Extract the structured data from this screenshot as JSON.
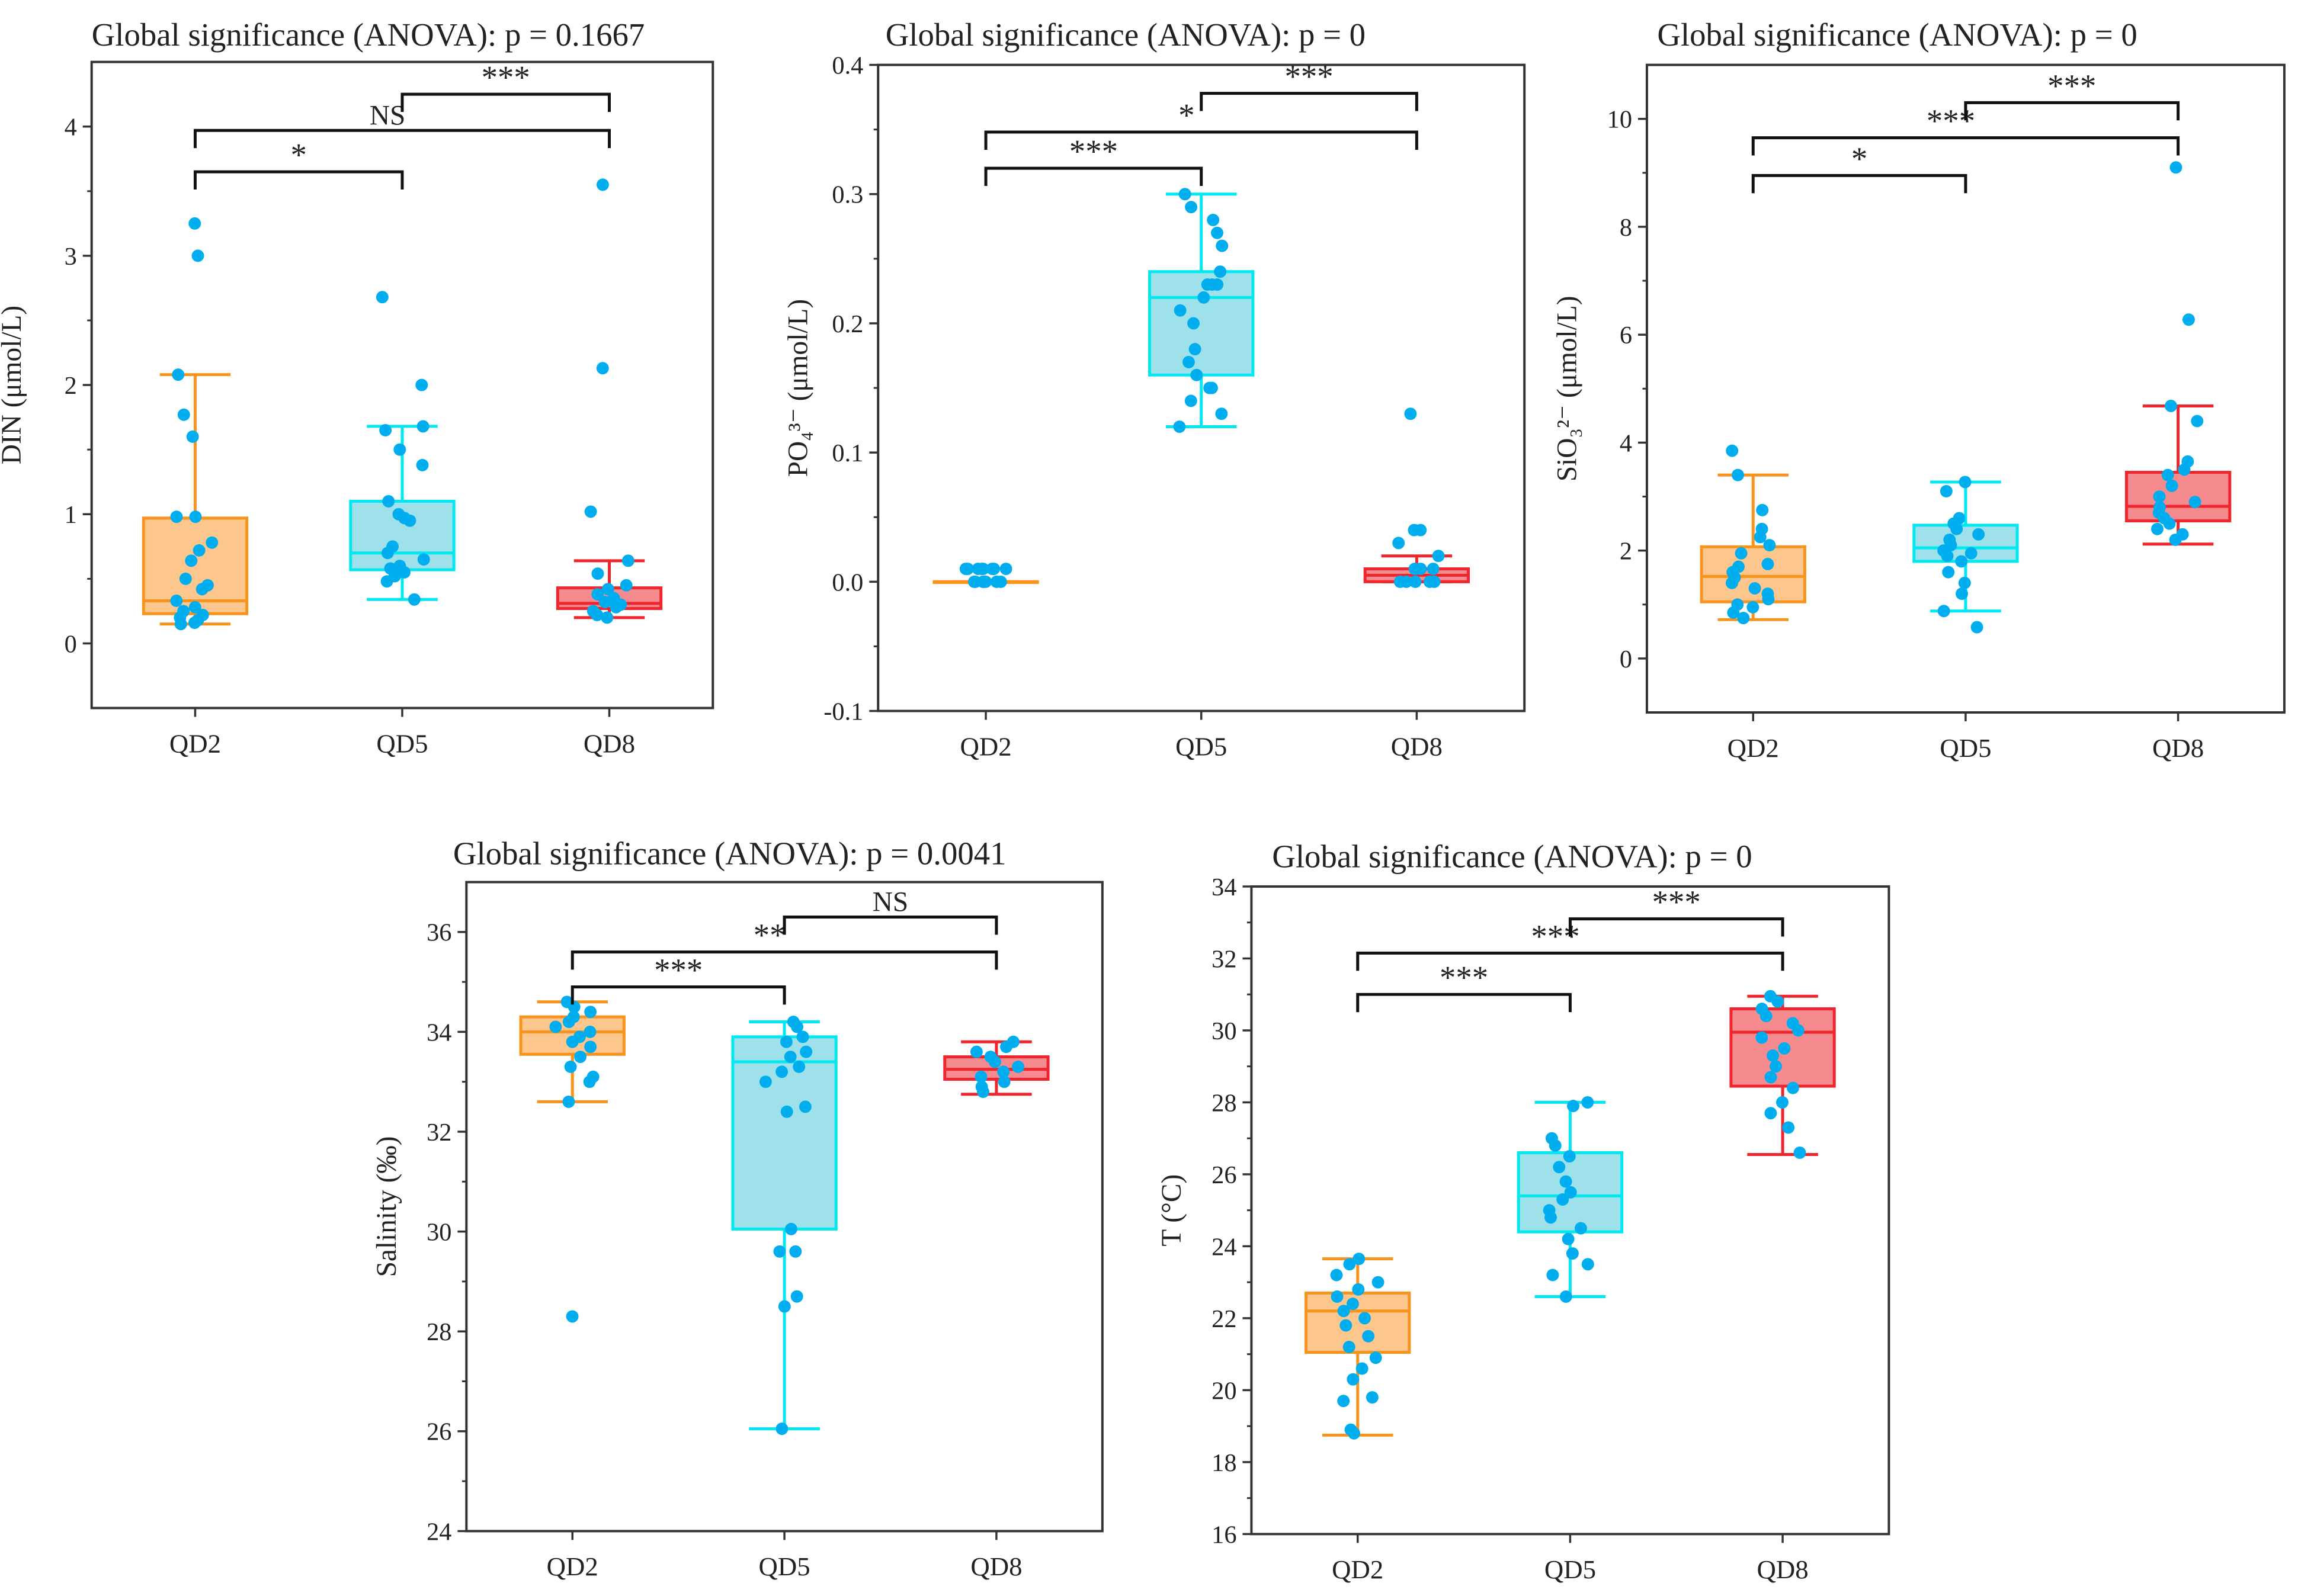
{
  "chart_data": [
    {
      "type": "box",
      "title": "Global significance (ANOVA): p = 0.1667",
      "ylabel": "DIN (μmol/L)",
      "categories": [
        "QD2",
        "QD5",
        "QD8"
      ],
      "ylim": [
        -0.5,
        4.5
      ],
      "yticks": [
        0,
        1,
        2,
        3,
        4
      ],
      "ytick_labels": [
        "0",
        "1",
        "2",
        "3",
        "4"
      ],
      "boxes": [
        {
          "q1": 0.23,
          "median": 0.33,
          "q3": 0.97,
          "whisker_low": 0.15,
          "whisker_high": 2.08,
          "points": [
            3.25,
            3.0,
            2.08,
            1.77,
            1.6,
            0.98,
            0.98,
            0.78,
            0.72,
            0.64,
            0.5,
            0.45,
            0.42,
            0.33,
            0.28,
            0.25,
            0.22,
            0.2,
            0.18,
            0.16,
            0.15
          ]
        },
        {
          "q1": 0.57,
          "median": 0.7,
          "q3": 1.1,
          "whisker_low": 0.34,
          "whisker_high": 1.68,
          "points": [
            2.68,
            2.0,
            1.68,
            1.65,
            1.5,
            1.38,
            1.1,
            1.0,
            0.97,
            0.95,
            0.75,
            0.7,
            0.65,
            0.6,
            0.58,
            0.55,
            0.52,
            0.48,
            0.34
          ]
        },
        {
          "q1": 0.27,
          "median": 0.31,
          "q3": 0.43,
          "whisker_low": 0.2,
          "whisker_high": 0.64,
          "points": [
            3.55,
            2.13,
            1.02,
            0.64,
            0.54,
            0.45,
            0.42,
            0.38,
            0.35,
            0.32,
            0.3,
            0.28,
            0.25,
            0.22,
            0.2
          ]
        }
      ],
      "brackets": [
        {
          "from": 0,
          "to": 1,
          "y": 3.65,
          "label": "*"
        },
        {
          "from": 0,
          "to": 2,
          "y": 3.97,
          "label": "NS"
        },
        {
          "from": 1,
          "to": 2,
          "y": 4.25,
          "label": "***"
        }
      ]
    },
    {
      "type": "box",
      "title": "Global significance (ANOVA): p = 0",
      "ylabel": "PO₄³⁻ (μmol/L)",
      "categories": [
        "QD2",
        "QD5",
        "QD8"
      ],
      "ylim": [
        -0.1,
        0.4
      ],
      "yticks": [
        -0.1,
        0,
        0.1,
        0.2,
        0.3,
        0.4
      ],
      "ytick_labels": [
        "-0.1",
        "0.0",
        "0.1",
        "0.2",
        "0.3",
        "0.4"
      ],
      "boxes": [
        {
          "q1": 0,
          "median": 0,
          "q3": 0,
          "whisker_low": 0,
          "whisker_high": 0,
          "points": [
            0.01,
            0.01,
            0.01,
            0.01,
            0.01,
            0.01,
            0.01,
            0.01,
            0,
            0,
            0,
            0,
            0,
            0,
            0,
            0
          ]
        },
        {
          "q1": 0.16,
          "median": 0.22,
          "q3": 0.24,
          "whisker_low": 0.12,
          "whisker_high": 0.3,
          "points": [
            0.3,
            0.29,
            0.28,
            0.27,
            0.26,
            0.24,
            0.23,
            0.23,
            0.23,
            0.22,
            0.21,
            0.2,
            0.18,
            0.17,
            0.16,
            0.15,
            0.15,
            0.14,
            0.13,
            0.12
          ]
        },
        {
          "q1": 0,
          "median": 0.005,
          "q3": 0.01,
          "whisker_low": 0,
          "whisker_high": 0.02,
          "points": [
            0.13,
            0.04,
            0.04,
            0.03,
            0.02,
            0.01,
            0.01,
            0.01,
            0,
            0,
            0,
            0,
            0
          ]
        }
      ],
      "brackets": [
        {
          "from": 0,
          "to": 1,
          "y": 0.32,
          "label": "***"
        },
        {
          "from": 0,
          "to": 2,
          "y": 0.348,
          "label": "*"
        },
        {
          "from": 1,
          "to": 2,
          "y": 0.378,
          "label": "***"
        }
      ]
    },
    {
      "type": "box",
      "title": "Global significance (ANOVA): p = 0",
      "ylabel": "SiO₃²⁻ (μmol/L)",
      "categories": [
        "QD2",
        "QD5",
        "QD8"
      ],
      "ylim": [
        -1,
        11
      ],
      "yticks": [
        0,
        2,
        4,
        6,
        8,
        10
      ],
      "ytick_labels": [
        "0",
        "2",
        "4",
        "6",
        "8",
        "10"
      ],
      "boxes": [
        {
          "q1": 1.05,
          "median": 1.52,
          "q3": 2.07,
          "whisker_low": 0.72,
          "whisker_high": 3.4,
          "points": [
            3.85,
            3.4,
            2.75,
            2.4,
            2.25,
            2.1,
            1.95,
            1.75,
            1.7,
            1.6,
            1.5,
            1.4,
            1.3,
            1.2,
            1.1,
            1.0,
            0.95,
            0.85,
            0.75
          ]
        },
        {
          "q1": 1.8,
          "median": 2.05,
          "q3": 2.47,
          "whisker_low": 0.88,
          "whisker_high": 3.27,
          "points": [
            3.27,
            3.1,
            2.6,
            2.5,
            2.4,
            2.3,
            2.2,
            2.1,
            2.0,
            1.95,
            1.9,
            1.8,
            1.6,
            1.4,
            1.2,
            0.88,
            0.58
          ]
        },
        {
          "q1": 2.55,
          "median": 2.82,
          "q3": 3.45,
          "whisker_low": 2.12,
          "whisker_high": 4.68,
          "points": [
            9.1,
            6.28,
            4.68,
            4.4,
            3.65,
            3.5,
            3.4,
            3.2,
            3.0,
            2.9,
            2.8,
            2.7,
            2.6,
            2.5,
            2.4,
            2.3,
            2.2
          ]
        }
      ],
      "brackets": [
        {
          "from": 0,
          "to": 1,
          "y": 8.95,
          "label": "*"
        },
        {
          "from": 0,
          "to": 2,
          "y": 9.65,
          "label": "***"
        },
        {
          "from": 1,
          "to": 2,
          "y": 10.3,
          "label": "***"
        }
      ]
    },
    {
      "type": "box",
      "title": "Global significance (ANOVA): p = 0.0041",
      "ylabel": "Salinity (‰)",
      "categories": [
        "QD2",
        "QD5",
        "QD8"
      ],
      "ylim": [
        24,
        37
      ],
      "yticks": [
        24,
        26,
        28,
        30,
        32,
        34,
        36
      ],
      "ytick_labels": [
        "24",
        "26",
        "28",
        "30",
        "32",
        "34",
        "36"
      ],
      "boxes": [
        {
          "q1": 33.55,
          "median": 34.0,
          "q3": 34.3,
          "whisker_low": 32.6,
          "whisker_high": 34.6,
          "points": [
            34.6,
            34.5,
            34.4,
            34.3,
            34.2,
            34.1,
            34.0,
            33.9,
            33.8,
            33.7,
            33.5,
            33.3,
            33.1,
            33.0,
            32.6,
            28.3
          ]
        },
        {
          "q1": 30.05,
          "median": 33.4,
          "q3": 33.9,
          "whisker_low": 26.05,
          "whisker_high": 34.2,
          "points": [
            34.2,
            34.1,
            33.9,
            33.8,
            33.6,
            33.5,
            33.3,
            33.2,
            33.0,
            32.5,
            32.4,
            30.05,
            29.6,
            29.6,
            28.7,
            28.5,
            26.05
          ]
        },
        {
          "q1": 33.05,
          "median": 33.25,
          "q3": 33.5,
          "whisker_low": 32.75,
          "whisker_high": 33.8,
          "points": [
            33.8,
            33.7,
            33.6,
            33.5,
            33.4,
            33.3,
            33.2,
            33.1,
            33.0,
            32.9,
            32.8
          ]
        }
      ],
      "brackets": [
        {
          "from": 0,
          "to": 1,
          "y": 34.9,
          "label": "***"
        },
        {
          "from": 0,
          "to": 2,
          "y": 35.6,
          "label": "**"
        },
        {
          "from": 1,
          "to": 2,
          "y": 36.3,
          "label": "NS"
        }
      ]
    },
    {
      "type": "box",
      "title": "Global significance (ANOVA): p = 0",
      "ylabel": "T (°C)",
      "categories": [
        "QD2",
        "QD5",
        "QD8"
      ],
      "ylim": [
        16,
        34
      ],
      "yticks": [
        16,
        18,
        20,
        22,
        24,
        26,
        28,
        30,
        32,
        34
      ],
      "ytick_labels": [
        "16",
        "18",
        "20",
        "22",
        "24",
        "26",
        "28",
        "30",
        "32",
        "34"
      ],
      "boxes": [
        {
          "q1": 21.05,
          "median": 22.2,
          "q3": 22.7,
          "whisker_low": 18.75,
          "whisker_high": 23.65,
          "points": [
            23.65,
            23.5,
            23.2,
            23.0,
            22.8,
            22.6,
            22.4,
            22.2,
            22.0,
            21.8,
            21.5,
            21.2,
            20.9,
            20.6,
            20.3,
            19.8,
            19.7,
            18.9,
            18.8
          ]
        },
        {
          "q1": 24.4,
          "median": 25.4,
          "q3": 26.6,
          "whisker_low": 22.6,
          "whisker_high": 28.0,
          "points": [
            28.0,
            27.9,
            27.0,
            26.8,
            26.5,
            26.2,
            25.8,
            25.5,
            25.3,
            25.0,
            24.8,
            24.5,
            24.2,
            23.8,
            23.5,
            23.2,
            22.6
          ]
        },
        {
          "q1": 28.45,
          "median": 29.95,
          "q3": 30.6,
          "whisker_low": 26.55,
          "whisker_high": 30.95,
          "points": [
            30.95,
            30.8,
            30.6,
            30.4,
            30.2,
            30.0,
            29.8,
            29.5,
            29.3,
            29.0,
            28.7,
            28.4,
            28.0,
            27.7,
            27.3,
            26.6
          ]
        }
      ],
      "brackets": [
        {
          "from": 0,
          "to": 1,
          "y": 31.0,
          "label": "***"
        },
        {
          "from": 0,
          "to": 2,
          "y": 32.15,
          "label": "***"
        },
        {
          "from": 1,
          "to": 2,
          "y": 33.1,
          "label": "***"
        }
      ]
    }
  ],
  "colors": {
    "series_stroke": [
      "#F7941D",
      "#00E8F0",
      "#F0262E"
    ],
    "series_fill": [
      "#FCC68C",
      "#9FE1EA",
      "#F58A8F"
    ],
    "points": "#00AEEF",
    "axis": "#333333"
  }
}
